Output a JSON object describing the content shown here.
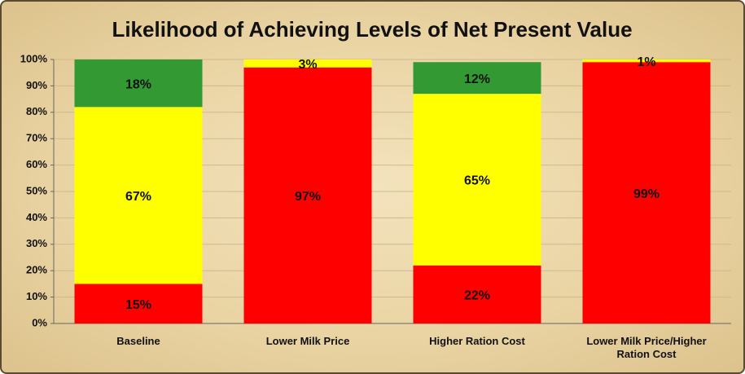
{
  "chart_data": {
    "type": "stacked_bar",
    "title": "Likelihood of Achieving Levels of Net Present Value",
    "categories": [
      "Baseline",
      "Lower Milk Price",
      "Higher Ration Cost",
      "Lower Milk Price/Higher Ration Cost"
    ],
    "series": [
      {
        "color": "#ff0000",
        "values": [
          15,
          97,
          22,
          99
        ],
        "value_labels": [
          "15%",
          "97%",
          "22%",
          "99%"
        ]
      },
      {
        "color": "#ffff00",
        "values": [
          67,
          3,
          65,
          1
        ],
        "value_labels": [
          "67%",
          "3%",
          "65%",
          "1%"
        ]
      },
      {
        "color": "#339933",
        "values": [
          18,
          null,
          12,
          null
        ],
        "value_labels": [
          "18%",
          null,
          "12%",
          null
        ]
      }
    ],
    "ylim": [
      0,
      100
    ],
    "yticks": [
      {
        "value": 0,
        "label": "0%"
      },
      {
        "value": 10,
        "label": "10%"
      },
      {
        "value": 20,
        "label": "20%"
      },
      {
        "value": 30,
        "label": "30%"
      },
      {
        "value": 40,
        "label": "40%"
      },
      {
        "value": 50,
        "label": "50%"
      },
      {
        "value": 60,
        "label": "60%"
      },
      {
        "value": 70,
        "label": "70%"
      },
      {
        "value": 80,
        "label": "80%"
      },
      {
        "value": 90,
        "label": "90%"
      },
      {
        "value": 100,
        "label": "100%"
      }
    ],
    "grid": true
  }
}
